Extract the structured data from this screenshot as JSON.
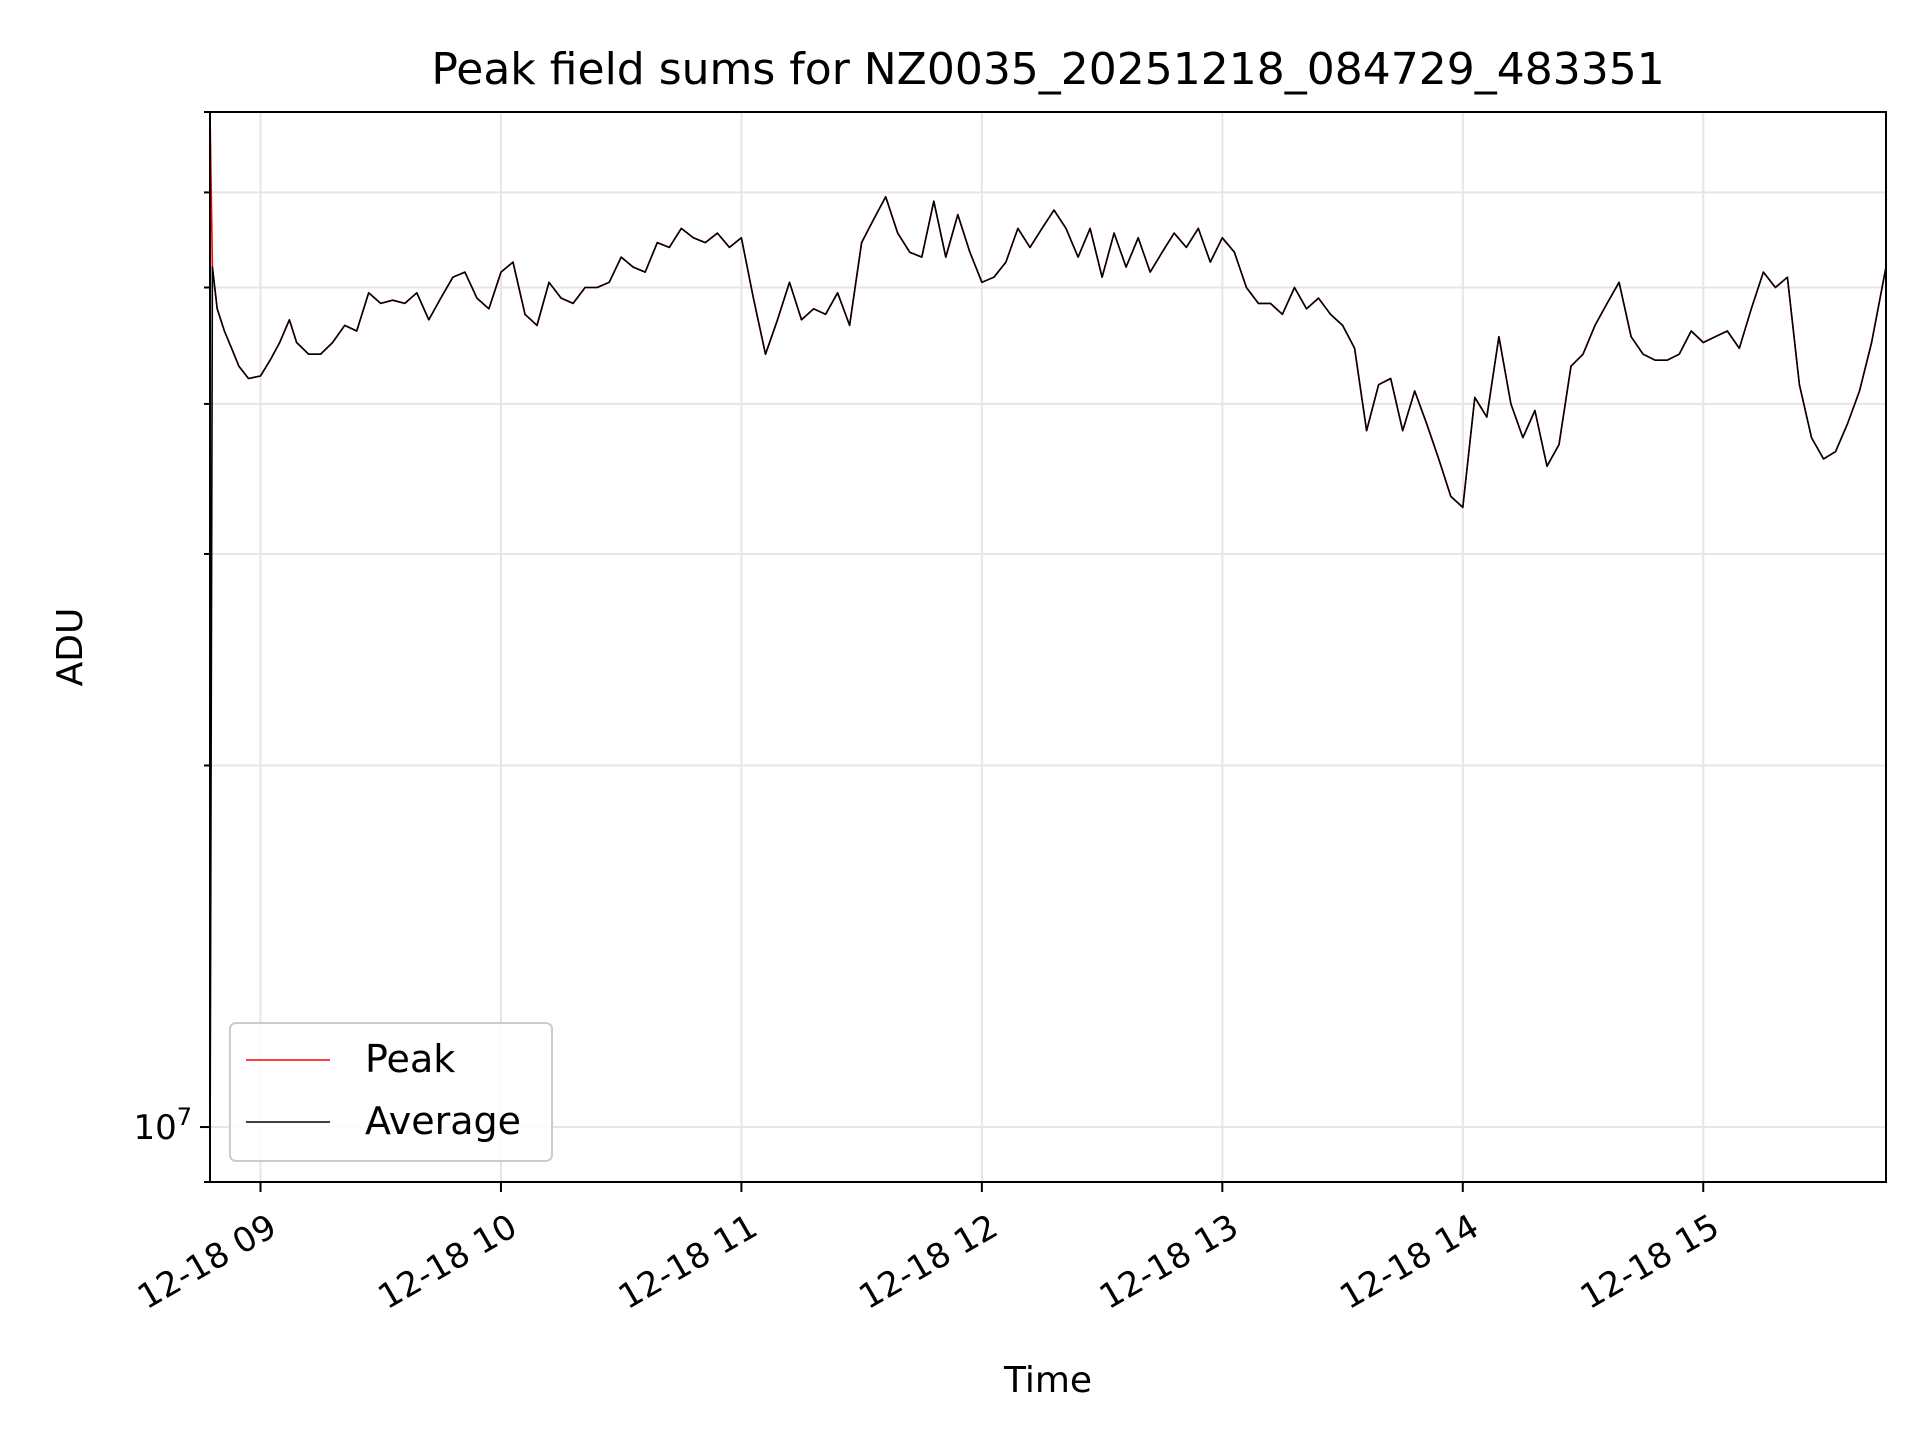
{
  "chart_data": {
    "type": "line",
    "title": "Peak field sums for NZ0035_20251218_084729_483351",
    "xlabel": "Time",
    "ylabel": "ADU",
    "y_scale": "log",
    "grid": true,
    "legend_position": "lower-left",
    "ylim": [
      9000000,
      70000000
    ],
    "x_range_hours": [
      8.79,
      15.76
    ],
    "x_ticks": [
      {
        "hour": 9,
        "label": "12-18 09"
      },
      {
        "hour": 10,
        "label": "12-18 10"
      },
      {
        "hour": 11,
        "label": "12-18 11"
      },
      {
        "hour": 12,
        "label": "12-18 12"
      },
      {
        "hour": 13,
        "label": "12-18 13"
      },
      {
        "hour": 14,
        "label": "12-18 14"
      },
      {
        "hour": 15,
        "label": "12-18 15"
      }
    ],
    "y_major_tick": {
      "value": 10000000,
      "label_base": "10",
      "label_exp": "7"
    },
    "series": [
      {
        "name": "Peak",
        "color": "#ff0000",
        "x": [
          8.79,
          8.8,
          8.82,
          8.85,
          8.88,
          8.91,
          8.95,
          9.0,
          9.04,
          9.08,
          9.12,
          9.15,
          9.2,
          9.25,
          9.3,
          9.35,
          9.4,
          9.45,
          9.5,
          9.55,
          9.6,
          9.65,
          9.7,
          9.75,
          9.8,
          9.85,
          9.9,
          9.95,
          10.0,
          10.05,
          10.1,
          10.15,
          10.2,
          10.25,
          10.3,
          10.35,
          10.4,
          10.45,
          10.5,
          10.55,
          10.6,
          10.65,
          10.7,
          10.75,
          10.8,
          10.85,
          10.9,
          10.95,
          11.0,
          11.05,
          11.1,
          11.15,
          11.2,
          11.25,
          11.3,
          11.35,
          11.4,
          11.45,
          11.5,
          11.55,
          11.6,
          11.65,
          11.7,
          11.75,
          11.8,
          11.85,
          11.9,
          11.95,
          12.0,
          12.05,
          12.1,
          12.15,
          12.2,
          12.25,
          12.3,
          12.35,
          12.4,
          12.45,
          12.5,
          12.55,
          12.6,
          12.65,
          12.7,
          12.75,
          12.8,
          12.85,
          12.9,
          12.95,
          13.0,
          13.05,
          13.1,
          13.15,
          13.2,
          13.25,
          13.3,
          13.35,
          13.4,
          13.45,
          13.5,
          13.55,
          13.6,
          13.65,
          13.7,
          13.75,
          13.8,
          13.85,
          13.9,
          13.95,
          14.0,
          14.05,
          14.1,
          14.15,
          14.2,
          14.25,
          14.3,
          14.35,
          14.4,
          14.45,
          14.5,
          14.55,
          14.6,
          14.65,
          14.7,
          14.75,
          14.8,
          14.85,
          14.9,
          14.95,
          15.0,
          15.05,
          15.1,
          15.15,
          15.2,
          15.25,
          15.3,
          15.35,
          15.4,
          15.45,
          15.5,
          15.55,
          15.6,
          15.65,
          15.7,
          15.76
        ],
        "y": [
          70000000,
          52000000,
          48000000,
          46000000,
          44500000,
          43000000,
          42000000,
          42200000,
          43500000,
          45000000,
          47000000,
          45000000,
          44000000,
          44000000,
          45000000,
          46500000,
          46000000,
          49500000,
          48500000,
          48800000,
          48500000,
          49500000,
          47000000,
          49000000,
          51000000,
          51500000,
          49000000,
          48000000,
          51500000,
          52500000,
          47500000,
          46500000,
          50500000,
          49000000,
          48500000,
          50000000,
          50000000,
          50500000,
          53000000,
          52000000,
          51500000,
          54500000,
          54000000,
          56000000,
          55000000,
          54500000,
          55500000,
          54000000,
          55000000,
          49000000,
          44000000,
          47000000,
          50500000,
          47000000,
          48000000,
          47500000,
          49500000,
          46500000,
          54500000,
          57000000,
          59500000,
          55500000,
          53500000,
          53000000,
          59000000,
          53000000,
          57500000,
          53500000,
          50500000,
          51000000,
          52500000,
          56000000,
          54000000,
          56000000,
          58000000,
          56000000,
          53000000,
          56000000,
          51000000,
          55500000,
          52000000,
          55000000,
          51500000,
          53500000,
          55500000,
          54000000,
          56000000,
          52500000,
          55000000,
          53500000,
          50000000,
          48500000,
          48500000,
          47500000,
          50000000,
          48000000,
          49000000,
          47500000,
          46500000,
          44500000,
          38000000,
          41500000,
          42000000,
          38000000,
          41000000,
          38500000,
          36000000,
          33500000,
          32800000,
          40500000,
          39000000,
          45500000,
          40000000,
          37500000,
          39500000,
          35500000,
          37000000,
          43000000,
          44000000,
          46500000,
          48500000,
          50500000,
          45500000,
          44000000,
          43500000,
          43500000,
          44000000,
          46000000,
          45000000,
          45500000,
          46000000,
          44500000,
          48000000,
          51500000,
          50000000,
          51000000,
          41500000,
          37500000,
          36000000,
          36500000,
          38500000,
          41000000,
          45000000,
          52000000
        ]
      },
      {
        "name": "Average",
        "color": "#000000",
        "x": [
          8.79,
          8.8,
          8.82,
          8.85,
          8.88,
          8.91,
          8.95,
          9.0,
          9.04,
          9.08,
          9.12,
          9.15,
          9.2,
          9.25,
          9.3,
          9.35,
          9.4,
          9.45,
          9.5,
          9.55,
          9.6,
          9.65,
          9.7,
          9.75,
          9.8,
          9.85,
          9.9,
          9.95,
          10.0,
          10.05,
          10.1,
          10.15,
          10.2,
          10.25,
          10.3,
          10.35,
          10.4,
          10.45,
          10.5,
          10.55,
          10.6,
          10.65,
          10.7,
          10.75,
          10.8,
          10.85,
          10.9,
          10.95,
          11.0,
          11.05,
          11.1,
          11.15,
          11.2,
          11.25,
          11.3,
          11.35,
          11.4,
          11.45,
          11.5,
          11.55,
          11.6,
          11.65,
          11.7,
          11.75,
          11.8,
          11.85,
          11.9,
          11.95,
          12.0,
          12.05,
          12.1,
          12.15,
          12.2,
          12.25,
          12.3,
          12.35,
          12.4,
          12.45,
          12.5,
          12.55,
          12.6,
          12.65,
          12.7,
          12.75,
          12.8,
          12.85,
          12.9,
          12.95,
          13.0,
          13.05,
          13.1,
          13.15,
          13.2,
          13.25,
          13.3,
          13.35,
          13.4,
          13.45,
          13.5,
          13.55,
          13.6,
          13.65,
          13.7,
          13.75,
          13.8,
          13.85,
          13.9,
          13.95,
          14.0,
          14.05,
          14.1,
          14.15,
          14.2,
          14.25,
          14.3,
          14.35,
          14.4,
          14.45,
          14.5,
          14.55,
          14.6,
          14.65,
          14.7,
          14.75,
          14.8,
          14.85,
          14.9,
          14.95,
          15.0,
          15.05,
          15.1,
          15.15,
          15.2,
          15.25,
          15.3,
          15.35,
          15.4,
          15.45,
          15.5,
          15.55,
          15.6,
          15.65,
          15.7,
          15.76
        ],
        "y": [
          9000000,
          52000000,
          48000000,
          46000000,
          44500000,
          43000000,
          42000000,
          42200000,
          43500000,
          45000000,
          47000000,
          45000000,
          44000000,
          44000000,
          45000000,
          46500000,
          46000000,
          49500000,
          48500000,
          48800000,
          48500000,
          49500000,
          47000000,
          49000000,
          51000000,
          51500000,
          49000000,
          48000000,
          51500000,
          52500000,
          47500000,
          46500000,
          50500000,
          49000000,
          48500000,
          50000000,
          50000000,
          50500000,
          53000000,
          52000000,
          51500000,
          54500000,
          54000000,
          56000000,
          55000000,
          54500000,
          55500000,
          54000000,
          55000000,
          49000000,
          44000000,
          47000000,
          50500000,
          47000000,
          48000000,
          47500000,
          49500000,
          46500000,
          54500000,
          57000000,
          59500000,
          55500000,
          53500000,
          53000000,
          59000000,
          53000000,
          57500000,
          53500000,
          50500000,
          51000000,
          52500000,
          56000000,
          54000000,
          56000000,
          58000000,
          56000000,
          53000000,
          56000000,
          51000000,
          55500000,
          52000000,
          55000000,
          51500000,
          53500000,
          55500000,
          54000000,
          56000000,
          52500000,
          55000000,
          53500000,
          50000000,
          48500000,
          48500000,
          47500000,
          50000000,
          48000000,
          49000000,
          47500000,
          46500000,
          44500000,
          38000000,
          41500000,
          42000000,
          38000000,
          41000000,
          38500000,
          36000000,
          33500000,
          32800000,
          40500000,
          39000000,
          45500000,
          40000000,
          37500000,
          39500000,
          35500000,
          37000000,
          43000000,
          44000000,
          46500000,
          48500000,
          50500000,
          45500000,
          44000000,
          43500000,
          43500000,
          44000000,
          46000000,
          45000000,
          45500000,
          46000000,
          44500000,
          48000000,
          51500000,
          50000000,
          51000000,
          41500000,
          37500000,
          36000000,
          36500000,
          38500000,
          41000000,
          45000000,
          52000000
        ]
      }
    ]
  }
}
